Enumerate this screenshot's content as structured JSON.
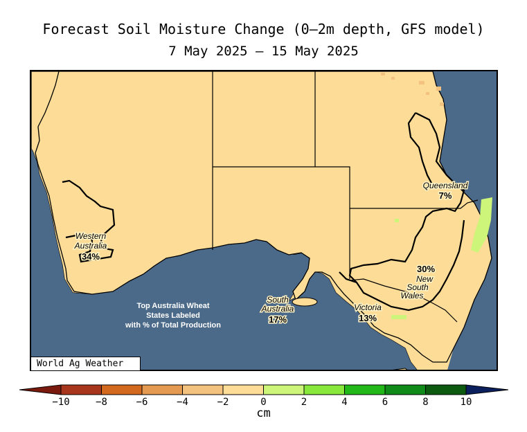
{
  "title": "Forecast Soil Moisture Change (0—2m depth, GFS model)",
  "date_range": "7 May 2025 — 15 May 2025",
  "credit": "World Ag Weather",
  "colors": {
    "ocean": "#4b6a8a",
    "land_no_change": "#fcdc96",
    "state_border": "#000000"
  },
  "states": [
    {
      "name_line1": "Western",
      "name_line2": "Australia",
      "name_line3": "",
      "share": "34%"
    },
    {
      "name_line1": "South",
      "name_line2": "Australia",
      "name_line3": "",
      "share": "17%"
    },
    {
      "name_line1": "Victoria",
      "name_line2": "",
      "name_line3": "",
      "share": "13%"
    },
    {
      "name_line1": "New",
      "name_line2": "South",
      "name_line3": "Wales",
      "share": "30%"
    },
    {
      "name_line1": "Queensland",
      "name_line2": "",
      "name_line3": "",
      "share": "7%"
    }
  ],
  "note": {
    "line1": "Top Australia Wheat",
    "line2": "States Labeled",
    "line3": "with % of Total Production"
  },
  "colorbar": {
    "units": "cm",
    "ticks": [
      "−10",
      "−8",
      "−6",
      "−4",
      "−2",
      "0",
      "2",
      "4",
      "6",
      "8",
      "10"
    ],
    "under_color": "#7a1a0e",
    "over_color": "#0a1f5c",
    "bins": [
      "#a8361c",
      "#d2691e",
      "#e59a52",
      "#f2c27e",
      "#fcdc96",
      "#ccf57a",
      "#88e83c",
      "#22b81a",
      "#108a18",
      "#0c5a10"
    ]
  }
}
